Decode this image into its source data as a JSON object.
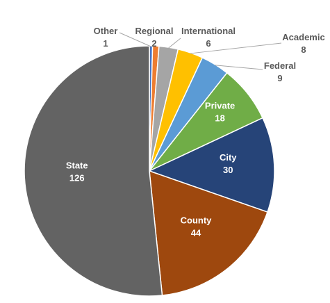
{
  "chart_data": {
    "type": "pie",
    "title": "",
    "slices": [
      {
        "label": "Other",
        "value": 1,
        "color": "#4472c4"
      },
      {
        "label": "Regional",
        "value": 2,
        "color": "#ed7d31"
      },
      {
        "label": "International",
        "value": 6,
        "color": "#a5a5a5"
      },
      {
        "label": "Academic",
        "value": 8,
        "color": "#ffc000"
      },
      {
        "label": "Federal",
        "value": 9,
        "color": "#5b9bd5"
      },
      {
        "label": "Private",
        "value": 18,
        "color": "#70ad47"
      },
      {
        "label": "City",
        "value": 30,
        "color": "#264478"
      },
      {
        "label": "County",
        "value": 44,
        "color": "#9e480e"
      },
      {
        "label": "State",
        "value": 126,
        "color": "#636363"
      }
    ],
    "legend": "none",
    "start_angle": "12 o'clock",
    "direction": "clockwise"
  }
}
